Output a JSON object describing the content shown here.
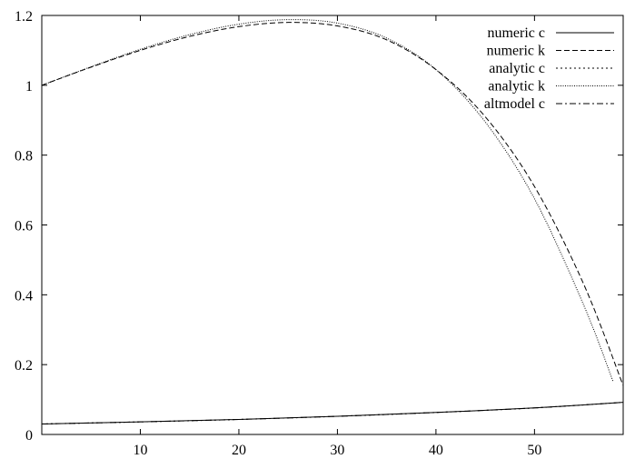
{
  "chart_data": {
    "type": "line",
    "title": "",
    "xlabel": "",
    "ylabel": "",
    "xlim": [
      0,
      59
    ],
    "ylim": [
      0,
      1.2
    ],
    "x_ticks": [
      10,
      20,
      30,
      40,
      50
    ],
    "y_ticks": [
      0,
      0.2,
      0.4,
      0.6,
      0.8,
      1,
      1.2
    ],
    "x_tick_labels": [
      "10",
      "20",
      "30",
      "40",
      "50"
    ],
    "y_tick_labels": [
      "0",
      "0.2",
      "0.4",
      "0.6",
      "0.8",
      "1",
      "1.2"
    ],
    "grid": false,
    "legend_position": "top-right",
    "series": [
      {
        "name": "numeric c",
        "dash": "solid",
        "x": [
          0,
          10,
          20,
          30,
          40,
          50,
          59
        ],
        "y": [
          0.03,
          0.036,
          0.043,
          0.052,
          0.063,
          0.076,
          0.092
        ]
      },
      {
        "name": "numeric k",
        "dash": "dashed",
        "x": [
          0,
          5,
          10,
          15,
          20,
          25,
          30,
          35,
          40,
          45,
          50,
          55,
          59
        ],
        "y": [
          1.0,
          1.052,
          1.1,
          1.14,
          1.168,
          1.18,
          1.17,
          1.13,
          1.045,
          0.91,
          0.71,
          0.43,
          0.14
        ]
      },
      {
        "name": "analytic c",
        "dash": "dotted",
        "x": [
          0,
          10,
          20,
          30,
          40,
          50,
          59
        ],
        "y": [
          0.03,
          0.036,
          0.043,
          0.052,
          0.063,
          0.076,
          0.092
        ]
      },
      {
        "name": "analytic k",
        "dash": "fine-dotted",
        "x": [
          0,
          5,
          10,
          15,
          20,
          25,
          30,
          35,
          40,
          45,
          50,
          55,
          58
        ],
        "y": [
          1.0,
          1.053,
          1.103,
          1.145,
          1.175,
          1.188,
          1.178,
          1.135,
          1.045,
          0.895,
          0.675,
          0.37,
          0.15
        ]
      },
      {
        "name": "altmodel c",
        "dash": "dash-dot",
        "x": [
          0,
          10,
          20,
          30,
          40,
          50,
          59
        ],
        "y": [
          0.03,
          0.036,
          0.043,
          0.052,
          0.063,
          0.076,
          0.092
        ]
      }
    ]
  }
}
